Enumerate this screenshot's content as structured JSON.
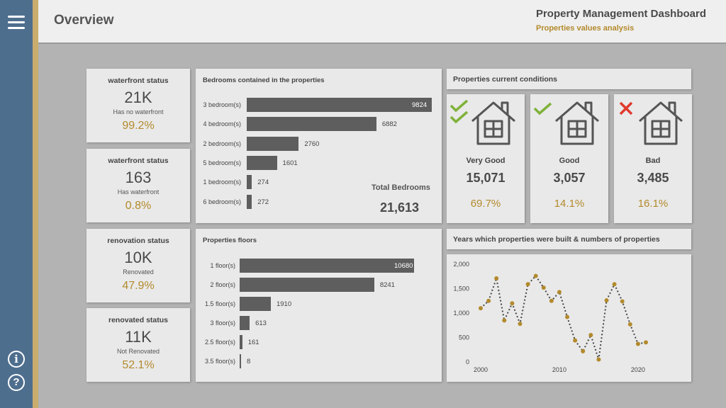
{
  "header": {
    "page_title": "Overview",
    "dashboard_title": "Property Management Dashboard",
    "dashboard_subtitle": "Properties values analysis"
  },
  "sidebar": {
    "menu_icon": "hamburger-menu-icon",
    "info_icon": "info-icon",
    "help_icon": "help-icon",
    "info_glyph": "i",
    "help_glyph": "?"
  },
  "colors": {
    "sidebar": "#4e6e8e",
    "accent": "#c9ad6e",
    "gold_text": "#b38a2c",
    "bar": "#5e5e5e",
    "check": "#7fb23a",
    "cross": "#e03a2e"
  },
  "kpis": [
    {
      "title": "waterfront status",
      "value": "21K",
      "sub": "Has no waterfront",
      "pct": "99.2%"
    },
    {
      "title": "waterfront status",
      "value": "163",
      "sub": "Has waterfront",
      "pct": "0.8%"
    },
    {
      "title": "renovation status",
      "value": "10K",
      "sub": "Renovated",
      "pct": "47.9%"
    },
    {
      "title": "renovated status",
      "value": "11K",
      "sub": "Not Renovated",
      "pct": "52.1%"
    }
  ],
  "bedrooms": {
    "title": "Bedrooms contained in the properties",
    "total_label": "Total Bedrooms",
    "total_value": "21,613",
    "chart_data": {
      "type": "bar",
      "orientation": "horizontal",
      "categories": [
        "3 bedroom(s)",
        "4 bedroom(s)",
        "2 bedroom(s)",
        "5 bedroom(s)",
        "1 bedroom(s)",
        "6 bedroom(s)"
      ],
      "values": [
        9824,
        6882,
        2760,
        1601,
        274,
        272
      ],
      "value_labels": [
        "9824",
        "6882",
        "2760",
        "1601",
        "274",
        "272"
      ]
    }
  },
  "floors": {
    "title": "Properties floors",
    "chart_data": {
      "type": "bar",
      "orientation": "horizontal",
      "categories": [
        "1 floor(s)",
        "2 floor(s)",
        "1.5 floor(s)",
        "3 floor(s)",
        "2.5 floor(s)",
        "3.5 floor(s)"
      ],
      "values": [
        10680,
        8241,
        1910,
        613,
        161,
        8
      ],
      "value_labels": [
        "10680",
        "8241",
        "1910",
        "613",
        "161",
        "8"
      ]
    }
  },
  "conditions": {
    "title": "Properties current conditions",
    "items": [
      {
        "label": "Very Good",
        "value": "15,071",
        "pct": "69.7%",
        "status_icon": "double-check-icon"
      },
      {
        "label": "Good",
        "value": "3,057",
        "pct": "14.1%",
        "status_icon": "check-icon"
      },
      {
        "label": "Bad",
        "value": "3,485",
        "pct": "16.1%",
        "status_icon": "cross-icon"
      }
    ],
    "house_icon": "house-icon"
  },
  "years": {
    "title": "Years which properties were built & numbers of properties",
    "chart_data": {
      "type": "line",
      "x": [
        2000,
        2001,
        2002,
        2003,
        2004,
        2005,
        2006,
        2007,
        2008,
        2009,
        2010,
        2011,
        2012,
        2013,
        2014,
        2015,
        2016,
        2017,
        2018,
        2019,
        2020,
        2021
      ],
      "values": [
        1100,
        1250,
        1710,
        850,
        1200,
        780,
        1590,
        1760,
        1520,
        1250,
        1430,
        920,
        440,
        220,
        550,
        50,
        1260,
        1590,
        1240,
        770,
        370,
        400
      ],
      "xlim": [
        2000,
        2021
      ],
      "ylim": [
        0,
        2000
      ],
      "yticks": [
        0,
        500,
        1000,
        1500,
        2000
      ],
      "ytick_labels": [
        "0",
        "500",
        "1,000",
        "1,500",
        "2,000"
      ],
      "xticks": [
        2000,
        2010,
        2020
      ],
      "xtick_labels": [
        "2000",
        "2010",
        "2020"
      ],
      "line_style": "dotted",
      "grid": false
    }
  }
}
